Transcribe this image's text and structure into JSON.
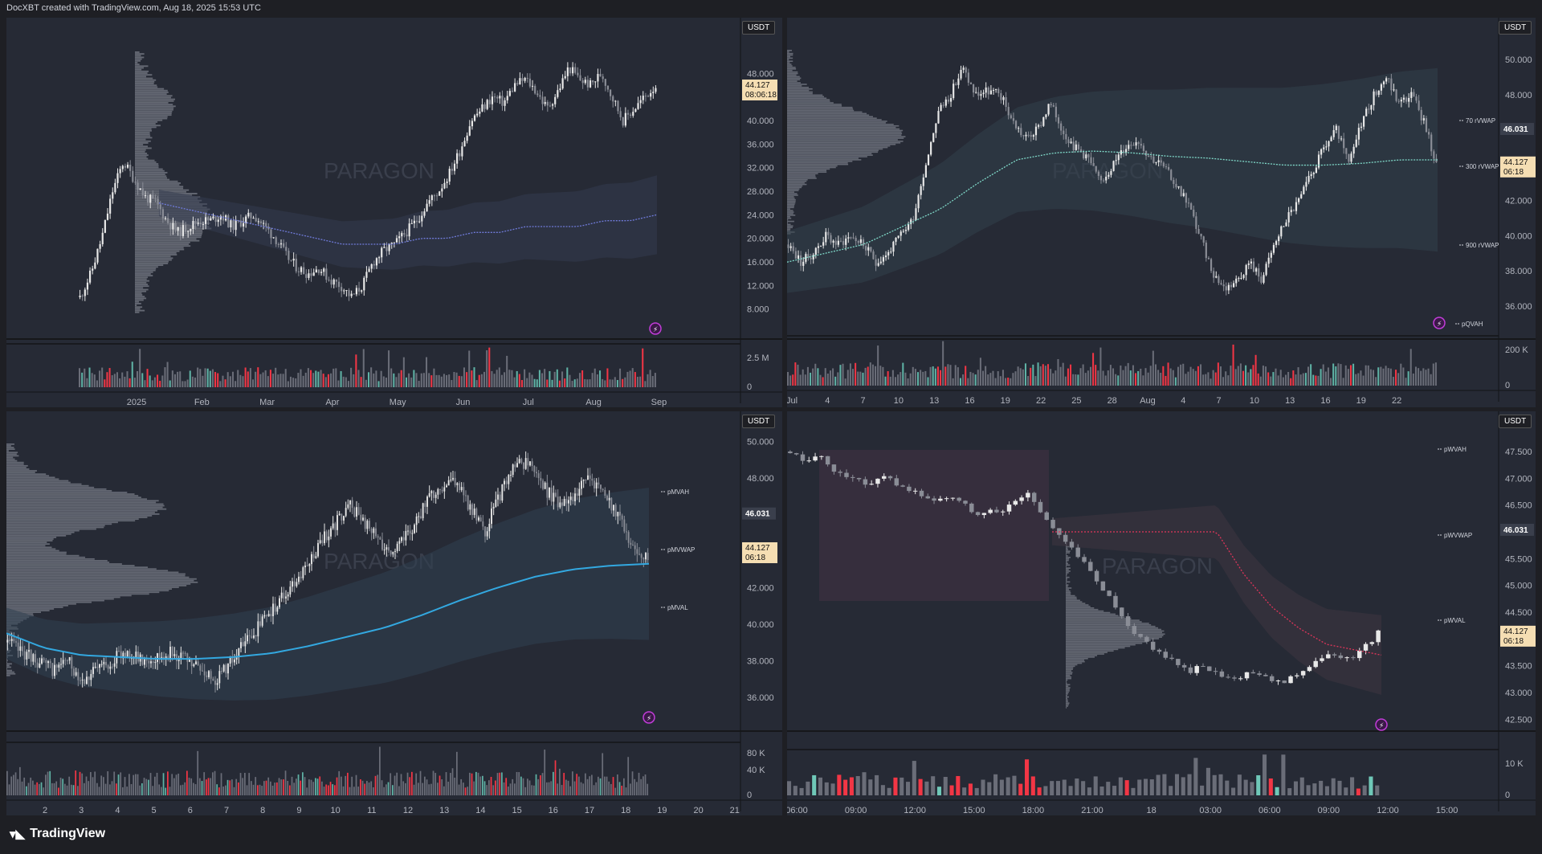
{
  "header": {
    "caption": "DocXBT created with TradingView.com, Aug 18, 2025 15:53 UTC"
  },
  "footer": {
    "brand": "TradingView"
  },
  "watermark": "PARAGON",
  "currency": "USDT",
  "chart_data": [
    {
      "type": "candlestick",
      "id": "tl",
      "x_ticks": [
        "2025",
        "Feb",
        "Mar",
        "Apr",
        "May",
        "Jun",
        "Jul",
        "Aug",
        "Sep"
      ],
      "y_ticks": [
        "48.000",
        "40.000",
        "36.000",
        "32.000",
        "28.000",
        "24.000",
        "20.000",
        "16.000",
        "12.000",
        "8.000"
      ],
      "volume_ticks": [
        "2.5 M",
        "0"
      ],
      "ylim": [
        4,
        52
      ],
      "close_path": [
        10,
        14,
        20,
        28,
        33,
        30,
        27,
        26,
        23,
        21,
        22,
        23,
        23,
        24,
        22,
        23,
        24,
        22,
        20,
        17,
        15,
        14,
        15,
        13,
        12,
        10,
        12,
        16,
        18,
        19,
        21,
        23,
        26,
        28,
        31,
        35,
        40,
        42,
        44,
        43,
        46,
        47,
        45,
        42,
        45,
        49,
        47,
        46,
        48,
        44,
        40,
        42,
        44,
        46
      ],
      "vwap": [
        26,
        25,
        24,
        23,
        22,
        21,
        20,
        19,
        19,
        19,
        20,
        20,
        21,
        21,
        22,
        22,
        22,
        23,
        23,
        24
      ],
      "last_price": "44.127",
      "countdown": "08:06:18",
      "range_low": 14,
      "range_high": 38
    },
    {
      "type": "candlestick",
      "id": "tr",
      "x_ticks": [
        "Jul",
        "4",
        "7",
        "10",
        "13",
        "16",
        "19",
        "22",
        "25",
        "28",
        "Aug",
        "4",
        "7",
        "10",
        "13",
        "16",
        "19",
        "22"
      ],
      "y_ticks": [
        "50.000",
        "48.000",
        "46.031",
        "44.127",
        "42.000",
        "40.000",
        "38.000",
        "36.000"
      ],
      "volume_ticks": [
        "200 K",
        "0"
      ],
      "ylim": [
        34.5,
        51
      ],
      "close_path": [
        39.5,
        38.5,
        39,
        40,
        39.5,
        40,
        39.5,
        38.5,
        39,
        40,
        41,
        44,
        47,
        48,
        49.5,
        48,
        48.2,
        48,
        46.5,
        45.5,
        46,
        47.5,
        46,
        45,
        44.5,
        43,
        44,
        45,
        45.5,
        44.5,
        44,
        43,
        42,
        40,
        38,
        37,
        37.5,
        38.5,
        37.5,
        39.5,
        41,
        42,
        43.5,
        45,
        46,
        44,
        46.5,
        48,
        49,
        47.5,
        48,
        46.5,
        44
      ],
      "vwap": [
        38.5,
        39,
        39.5,
        40.5,
        41.5,
        43,
        44.3,
        44.7,
        44.8,
        44.7,
        44.5,
        44.4,
        44.2,
        44.0,
        44.0,
        44.1,
        44.3,
        44.3
      ],
      "level_labels": [
        "70 rVWAP",
        "300 rVWAP",
        "900 rVWAP",
        "pQVAH"
      ],
      "last_price": "44.127",
      "countdown": "06:18",
      "ref_price": "46.031"
    },
    {
      "type": "candlestick",
      "id": "bl",
      "x_ticks": [
        "2",
        "3",
        "4",
        "5",
        "6",
        "7",
        "8",
        "9",
        "10",
        "11",
        "12",
        "13",
        "14",
        "15",
        "16",
        "17",
        "18",
        "19",
        "20",
        "21"
      ],
      "y_ticks": [
        "50.000",
        "48.000",
        "46.031",
        "44.127",
        "42.000",
        "40.000",
        "38.000",
        "36.000"
      ],
      "volume_ticks": [
        "80 K",
        "40 K",
        "0"
      ],
      "ylim": [
        34.5,
        50.5
      ],
      "close_path": [
        39,
        38.5,
        38,
        37.5,
        38,
        37,
        37.5,
        38,
        38.5,
        38,
        38.2,
        38.5,
        38,
        37.5,
        37,
        38,
        39,
        40,
        41,
        42,
        43,
        44.5,
        45.5,
        46.5,
        45.5,
        44.5,
        44,
        45,
        46.5,
        47.5,
        48,
        46.5,
        45,
        47,
        48.5,
        49,
        47.5,
        46.5,
        47,
        48,
        47,
        46,
        44,
        43.5
      ],
      "vwap": [
        39.5,
        38.7,
        38.3,
        38.2,
        38.1,
        38.1,
        38.2,
        38.4,
        38.8,
        39.3,
        39.8,
        40.5,
        41.3,
        42,
        42.6,
        43,
        43.2,
        43.3
      ],
      "level_labels": [
        "pMVAH",
        "pMVWAP",
        "pMVAL"
      ],
      "last_price": "44.127",
      "countdown": "06:18",
      "ref_price": "46.031"
    },
    {
      "type": "candlestick",
      "id": "br",
      "x_ticks": [
        "06:00",
        "09:00",
        "12:00",
        "15:00",
        "18:00",
        "21:00",
        "18",
        "03:00",
        "06:00",
        "09:00",
        "12:00",
        "15:00"
      ],
      "y_ticks": [
        "47.500",
        "47.000",
        "46.500",
        "46.031",
        "45.500",
        "45.000",
        "44.500",
        "44.127",
        "43.500",
        "43.000",
        "42.500"
      ],
      "volume_ticks": [
        "10 K",
        "0"
      ],
      "ylim": [
        42.4,
        47.8
      ],
      "close_path": [
        47.5,
        47.3,
        47.4,
        47.1,
        47.0,
        46.9,
        47.0,
        46.8,
        46.7,
        46.6,
        46.6,
        46.5,
        46.3,
        46.4,
        46.5,
        46.7,
        46.3,
        45.9,
        45.6,
        45.2,
        44.8,
        44.4,
        44.0,
        43.8,
        43.6,
        43.4,
        43.5,
        43.3,
        43.2,
        43.4,
        43.3,
        43.2,
        43.4,
        43.6,
        43.7,
        43.6,
        43.8,
        44.1
      ],
      "vwap": [
        46.0,
        46.0,
        46.0,
        46.0,
        46.0,
        46.0,
        46.0,
        45.2,
        44.6,
        44.2,
        43.9,
        43.8,
        43.7
      ],
      "level_labels": [
        "pWVAH",
        "pWVWAP",
        "pWVAL"
      ],
      "last_price": "44.127",
      "countdown": "06:18",
      "ref_price": "46.031"
    }
  ]
}
